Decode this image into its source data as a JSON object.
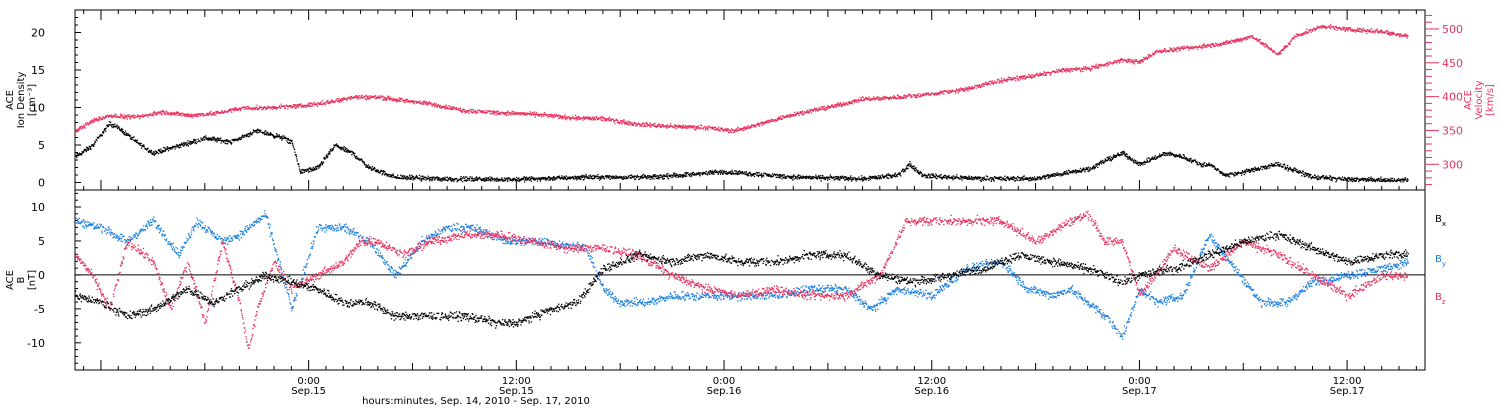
{
  "chart_data": [
    {
      "type": "scatter",
      "panel": "top",
      "x_unit": "hours since 2010-09-14 00:00",
      "xlim": [
        10.5,
        88.5
      ],
      "left_axis": {
        "label_lines": [
          "ACE",
          "Ion Density",
          "[cm⁻³]"
        ],
        "ylim": [
          -1,
          23
        ],
        "ticks": [
          0,
          5,
          10,
          15,
          20
        ],
        "color": "#000000"
      },
      "right_axis": {
        "label_lines": [
          "ACE",
          "Velocity",
          "[km/s]"
        ],
        "ylim": [
          262,
          528
        ],
        "ticks": [
          300,
          350,
          400,
          450,
          500
        ],
        "color": "#e8325f"
      },
      "series": [
        {
          "axis": "left",
          "color": "#000000",
          "x": [
            10.5,
            11.5,
            12.5,
            13.2,
            14.0,
            15.0,
            16.5,
            18.0,
            19.5,
            21.0,
            22.5,
            23.0,
            23.5,
            24.5,
            25.5,
            26.5,
            27.5,
            29.0,
            31.0,
            33.0,
            36.0,
            40.0,
            44.0,
            48.0,
            52.0,
            56.0,
            58.0,
            58.7,
            59.5,
            61.0,
            63.0,
            66.0,
            68.0,
            69.2,
            70.0,
            71.0,
            72.0,
            73.5,
            74.5,
            75.5,
            76.0,
            77.0,
            78.0,
            80.0,
            82.0,
            84.0,
            86.0,
            87.5
          ],
          "y": [
            3.5,
            5.0,
            8.0,
            7.0,
            5.5,
            4.0,
            5.0,
            6.0,
            5.5,
            7.0,
            6.0,
            5.5,
            1.5,
            2.0,
            5.0,
            4.0,
            2.0,
            0.8,
            0.6,
            0.5,
            0.5,
            0.8,
            0.8,
            1.5,
            0.8,
            0.6,
            1.0,
            2.5,
            1.0,
            0.8,
            0.6,
            0.6,
            1.5,
            2.0,
            3.0,
            4.0,
            2.5,
            4.0,
            3.5,
            2.5,
            2.5,
            1.0,
            1.5,
            2.5,
            0.8,
            0.5,
            0.4,
            0.4
          ]
        },
        {
          "axis": "right",
          "color": "#e8325f",
          "x": [
            10.5,
            11.5,
            12.5,
            14.0,
            15.5,
            17.0,
            18.5,
            20.0,
            22.0,
            23.5,
            25.0,
            26.5,
            28.0,
            29.5,
            31.0,
            33.0,
            35.0,
            37.0,
            39.0,
            41.0,
            43.0,
            45.0,
            47.0,
            48.5,
            50.0,
            52.0,
            54.0,
            56.0,
            58.0,
            60.0,
            62.0,
            64.0,
            66.0,
            67.5,
            69.0,
            71.0,
            72.0,
            73.0,
            75.0,
            77.0,
            78.5,
            80.0,
            81.0,
            82.5,
            84.0,
            86.0,
            87.5
          ],
          "y": [
            350,
            365,
            373,
            370,
            378,
            373,
            376,
            383,
            385,
            387,
            392,
            400,
            400,
            395,
            390,
            380,
            377,
            375,
            370,
            368,
            360,
            357,
            355,
            350,
            360,
            375,
            385,
            397,
            400,
            405,
            412,
            425,
            432,
            440,
            442,
            455,
            452,
            468,
            473,
            480,
            490,
            463,
            490,
            505,
            500,
            497,
            490
          ]
        }
      ]
    },
    {
      "type": "scatter",
      "panel": "bottom",
      "x_unit": "hours since 2010-09-14 00:00",
      "xlim": [
        10.5,
        88.5
      ],
      "y_axis": {
        "label_lines": [
          "ACE",
          "B",
          "[nT]"
        ],
        "ylim": [
          -14,
          12.5
        ],
        "ticks": [
          -10,
          -5,
          0,
          5,
          10
        ],
        "zero_line": true
      },
      "legend_position": "right",
      "series": [
        {
          "name": "Bx",
          "name_base": "B",
          "name_sub": "x",
          "color": "#000000",
          "x": [
            10.5,
            12.0,
            13.5,
            15.0,
            17.0,
            18.5,
            20.0,
            21.5,
            23.0,
            24.5,
            26.0,
            27.5,
            29.0,
            31.0,
            33.0,
            35.0,
            36.0,
            37.0,
            38.0,
            39.5,
            41.0,
            42.0,
            43.0,
            45.0,
            47.0,
            49.0,
            51.0,
            53.0,
            55.0,
            57.0,
            59.0,
            61.0,
            63.0,
            65.0,
            67.0,
            69.0,
            70.0,
            71.0,
            72.0,
            74.0,
            76.0,
            78.0,
            80.0,
            82.0,
            84.0,
            86.0,
            87.5
          ],
          "y": [
            -3,
            -4,
            -6,
            -5,
            -2,
            -4,
            -2,
            0,
            -1,
            -2,
            -4,
            -4,
            -6,
            -6,
            -6,
            -7,
            -7,
            -6,
            -5,
            -4,
            1,
            2,
            3,
            2,
            3,
            2,
            2,
            3,
            3,
            0,
            -1,
            0,
            1,
            3,
            2,
            1,
            0,
            -1,
            0,
            1,
            3,
            5,
            6,
            4,
            2,
            3,
            3
          ]
        },
        {
          "name": "By",
          "name_base": "B",
          "name_sub": "y",
          "color": "#1a7fe0",
          "x": [
            10.5,
            12.0,
            13.5,
            15.0,
            16.5,
            17.5,
            19.0,
            20.0,
            21.5,
            23.0,
            24.5,
            26.0,
            27.5,
            29.0,
            30.5,
            32.0,
            33.5,
            35.5,
            37.5,
            40.0,
            41.0,
            42.0,
            43.5,
            45.0,
            47.0,
            49.0,
            51.0,
            53.0,
            55.0,
            56.5,
            58.0,
            60.0,
            62.0,
            64.0,
            65.5,
            67.0,
            68.0,
            69.0,
            70.0,
            71.0,
            72.0,
            73.0,
            74.5,
            76.0,
            77.5,
            79.0,
            80.5,
            82.0,
            84.0,
            86.0,
            87.5
          ],
          "y": [
            8,
            7,
            5,
            8,
            3,
            8,
            5,
            6,
            9,
            -5,
            7,
            7,
            5,
            0,
            5,
            7,
            7,
            5,
            5,
            4,
            -2,
            -4,
            -4,
            -3,
            -3,
            -3,
            -3,
            -2,
            -2,
            -5,
            -2,
            -3,
            1,
            2,
            -2,
            -3,
            -2,
            -4,
            -6,
            -9,
            -2,
            -4,
            -3,
            6,
            1,
            -4,
            -4,
            -1,
            0,
            1,
            2
          ]
        },
        {
          "name": "Bz",
          "name_base": "B",
          "name_sub": "z",
          "color": "#e8325f",
          "x": [
            10.5,
            11.5,
            12.5,
            13.5,
            15.0,
            16.0,
            17.0,
            18.0,
            19.0,
            20.0,
            20.5,
            21.0,
            22.0,
            23.0,
            24.5,
            26.0,
            27.0,
            28.0,
            29.5,
            31.0,
            33.0,
            35.0,
            37.0,
            39.0,
            41.0,
            43.0,
            45.0,
            47.0,
            49.0,
            51.0,
            53.0,
            55.0,
            57.0,
            58.5,
            60.0,
            62.0,
            64.0,
            66.0,
            68.0,
            69.0,
            70.0,
            71.0,
            72.0,
            74.0,
            76.0,
            78.0,
            80.0,
            82.0,
            84.0,
            86.0,
            87.5
          ],
          "y": [
            3,
            0,
            -5,
            5,
            2,
            -5,
            2,
            -7,
            5,
            -4,
            -11,
            -5,
            2,
            -2,
            0,
            2,
            5,
            5,
            3,
            5,
            6,
            6,
            5,
            4,
            4,
            3,
            0,
            -2,
            -3,
            -2,
            -3,
            -3,
            0,
            8,
            8,
            8,
            8,
            5,
            8,
            9,
            5,
            5,
            -3,
            4,
            1,
            5,
            3,
            0,
            -3,
            0,
            0
          ]
        }
      ]
    }
  ],
  "x_axis": {
    "ticks": [
      {
        "hour": 24,
        "time": "0:00",
        "date": "Sep.15"
      },
      {
        "hour": 36,
        "time": "12:00",
        "date": "Sep.15"
      },
      {
        "hour": 48,
        "time": "0:00",
        "date": "Sep.16"
      },
      {
        "hour": 60,
        "time": "12:00",
        "date": "Sep.16"
      },
      {
        "hour": 72,
        "time": "0:00",
        "date": "Sep.17"
      },
      {
        "hour": 84,
        "time": "12:00",
        "date": "Sep.17"
      }
    ],
    "title": "hours:minutes, Sep. 14, 2010 - Sep. 17, 2010"
  }
}
